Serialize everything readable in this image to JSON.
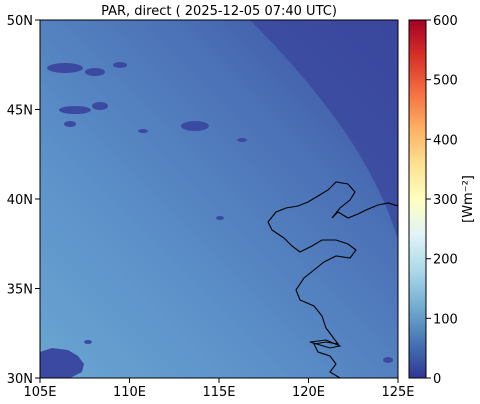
{
  "title": "PAR, direct ( 2025-12-05 07:40 UTC)",
  "map": {
    "x_ticks": [
      {
        "value": 105,
        "label": "105E"
      },
      {
        "value": 110,
        "label": "110E"
      },
      {
        "value": 115,
        "label": "115E"
      },
      {
        "value": 120,
        "label": "120E"
      },
      {
        "value": 125,
        "label": "125E"
      }
    ],
    "y_ticks": [
      {
        "value": 30,
        "label": "30N"
      },
      {
        "value": 35,
        "label": "35N"
      },
      {
        "value": 40,
        "label": "40N"
      },
      {
        "value": 45,
        "label": "45N"
      },
      {
        "value": 50,
        "label": "50N"
      }
    ],
    "lon_range": [
      105,
      125
    ],
    "lat_range": [
      30,
      50
    ]
  },
  "colorbar": {
    "label": "[Wm⁻²]",
    "range": [
      0,
      600
    ],
    "ticks": [
      {
        "value": 0,
        "label": "0"
      },
      {
        "value": 100,
        "label": "100"
      },
      {
        "value": 200,
        "label": "200"
      },
      {
        "value": 300,
        "label": "300"
      },
      {
        "value": 400,
        "label": "400"
      },
      {
        "value": 500,
        "label": "500"
      },
      {
        "value": 600,
        "label": "600"
      }
    ],
    "colormap": [
      "#313695",
      "#4575b4",
      "#74add1",
      "#abd9e9",
      "#e0f3f8",
      "#ffffbf",
      "#fee090",
      "#fdae61",
      "#f46d43",
      "#d73027",
      "#a50026"
    ]
  }
}
